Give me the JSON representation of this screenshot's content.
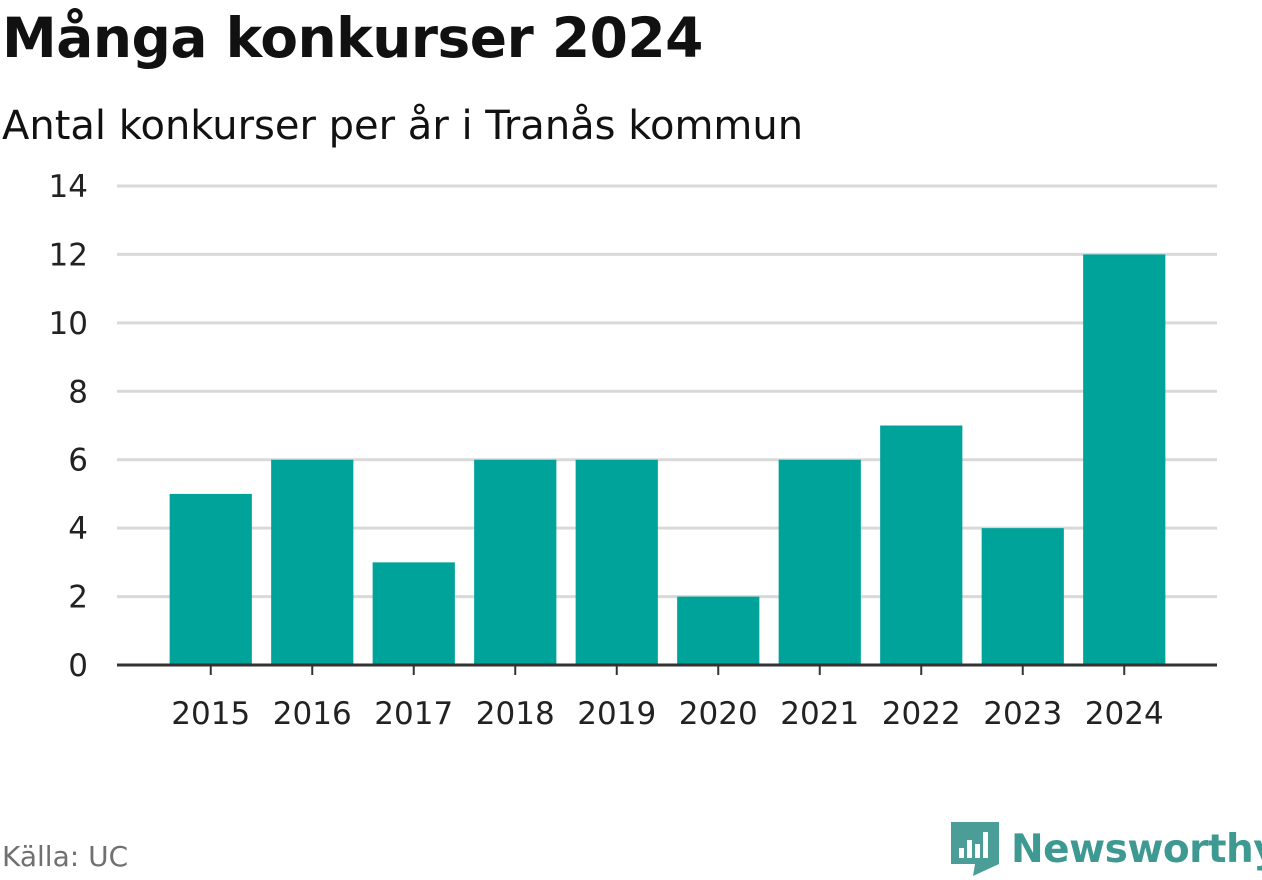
{
  "header": {
    "title": "Många konkurser 2024",
    "subtitle": "Antal konkurser per år i Tranås kommun"
  },
  "footer": {
    "source": "Källa: UC",
    "brand": "Newsworthy",
    "brand_icon": "newsworthy-logo-icon"
  },
  "colors": {
    "bar": "#00a39a",
    "grid": "#d9d9d9",
    "axis": "#333333",
    "tick_text": "#222222",
    "brand": "#3f9993"
  },
  "chart_data": {
    "type": "bar",
    "title": "Många konkurser 2024",
    "subtitle": "Antal konkurser per år i Tranås kommun",
    "xlabel": "",
    "ylabel": "",
    "categories": [
      "2015",
      "2016",
      "2017",
      "2018",
      "2019",
      "2020",
      "2021",
      "2022",
      "2023",
      "2024"
    ],
    "values": [
      5,
      6,
      3,
      6,
      6,
      2,
      6,
      7,
      4,
      12
    ],
    "ylim": [
      0,
      14
    ],
    "yticks": [
      0,
      2,
      4,
      6,
      8,
      10,
      12,
      14
    ],
    "grid": true,
    "legend": "none"
  }
}
